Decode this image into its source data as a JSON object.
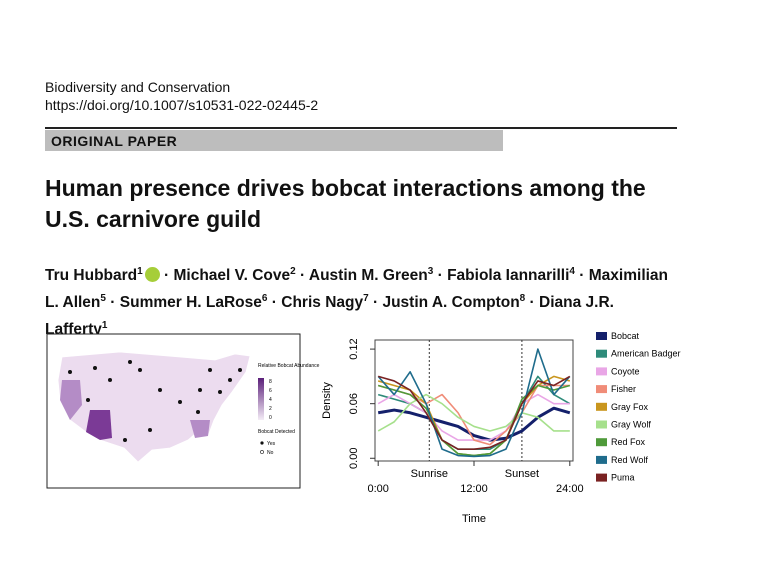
{
  "header": {
    "journal": "Biodiversity and Conservation",
    "doi": "https://doi.org/10.1007/s10531-022-02445-2",
    "section": "ORIGINAL PAPER"
  },
  "title": "Human presence drives bobcat interactions among the U.S. carnivore guild",
  "author_separator": "·",
  "authors": [
    {
      "name": "Tru Hubbard",
      "affiliation": "1"
    },
    {
      "name": "Michael V. Cove",
      "affiliation": "2"
    },
    {
      "name": "Austin M. Green",
      "affiliation": "3"
    },
    {
      "name": "Fabiola Iannarilli",
      "affiliation": "4"
    },
    {
      "name": "Maximilian L. Allen",
      "affiliation": "5"
    },
    {
      "name": "Summer H. LaRose",
      "affiliation": "6"
    },
    {
      "name": "Chris Nagy",
      "affiliation": "7"
    },
    {
      "name": "Justin A. Compton",
      "affiliation": "8"
    },
    {
      "name": "Diana J.R. Lafferty",
      "affiliation": "1"
    }
  ],
  "figure_map": {
    "legend_title": "Relative Bobcat Abundance",
    "legend_ticks": [
      8,
      6,
      4,
      2,
      0
    ],
    "detected_title": "Bobcat Detected",
    "detected_labels": [
      "Yes",
      "No"
    ]
  },
  "chart_data": {
    "type": "line",
    "x_label": "Time",
    "y_label": "Density",
    "x": [
      0,
      2,
      4,
      6,
      8,
      10,
      12,
      14,
      16,
      18,
      20,
      22,
      24
    ],
    "xlim": [
      -0.4,
      24.4
    ],
    "xticks": [
      {
        "value": 0,
        "label": "0:00"
      },
      {
        "value": 12,
        "label": "12:00"
      },
      {
        "value": 24,
        "label": "24:00"
      }
    ],
    "ylim": [
      -0.003,
      0.13
    ],
    "yticks": [
      {
        "value": 0,
        "label": "0.00"
      },
      {
        "value": 0.06,
        "label": "0.06"
      },
      {
        "value": 0.12,
        "label": "0.12"
      }
    ],
    "annotations": [
      {
        "label": "Sunrise",
        "x": 6.4
      },
      {
        "label": "Sunset",
        "x": 18
      }
    ],
    "legend": "right",
    "series": [
      {
        "name": "Bobcat",
        "color": "#14206b",
        "values": [
          0.05,
          0.053,
          0.05,
          0.045,
          0.04,
          0.035,
          0.025,
          0.02,
          0.022,
          0.03,
          0.045,
          0.055,
          0.05
        ]
      },
      {
        "name": "American Badger",
        "color": "#2e8b7a",
        "values": [
          0.07,
          0.065,
          0.06,
          0.05,
          0.02,
          0.01,
          0.01,
          0.01,
          0.02,
          0.06,
          0.09,
          0.07,
          0.06
        ]
      },
      {
        "name": "Coyote",
        "color": "#e9a6e6",
        "values": [
          0.06,
          0.07,
          0.06,
          0.05,
          0.03,
          0.02,
          0.02,
          0.02,
          0.03,
          0.06,
          0.07,
          0.06,
          0.06
        ]
      },
      {
        "name": "Fisher",
        "color": "#f08c78",
        "values": [
          0.08,
          0.075,
          0.07,
          0.06,
          0.07,
          0.05,
          0.02,
          0.015,
          0.03,
          0.05,
          0.08,
          0.08,
          0.08
        ]
      },
      {
        "name": "Gray Fox",
        "color": "#c9961e",
        "values": [
          0.085,
          0.08,
          0.075,
          0.06,
          0.02,
          0.005,
          0.003,
          0.005,
          0.02,
          0.06,
          0.08,
          0.09,
          0.085
        ]
      },
      {
        "name": "Gray Wolf",
        "color": "#a6e08c",
        "values": [
          0.03,
          0.04,
          0.06,
          0.07,
          0.06,
          0.045,
          0.035,
          0.03,
          0.035,
          0.05,
          0.045,
          0.03,
          0.03
        ]
      },
      {
        "name": "Red Fox",
        "color": "#4f9a3a",
        "values": [
          0.08,
          0.075,
          0.07,
          0.055,
          0.02,
          0.005,
          0.003,
          0.005,
          0.02,
          0.065,
          0.08,
          0.075,
          0.08
        ]
      },
      {
        "name": "Red Wolf",
        "color": "#1f6c8c",
        "values": [
          0.09,
          0.07,
          0.095,
          0.06,
          0.01,
          0.003,
          0.002,
          0.003,
          0.01,
          0.05,
          0.12,
          0.07,
          0.09
        ]
      },
      {
        "name": "Puma",
        "color": "#7a2222",
        "values": [
          0.09,
          0.085,
          0.075,
          0.05,
          0.02,
          0.01,
          0.01,
          0.012,
          0.02,
          0.06,
          0.085,
          0.08,
          0.09
        ]
      }
    ]
  }
}
